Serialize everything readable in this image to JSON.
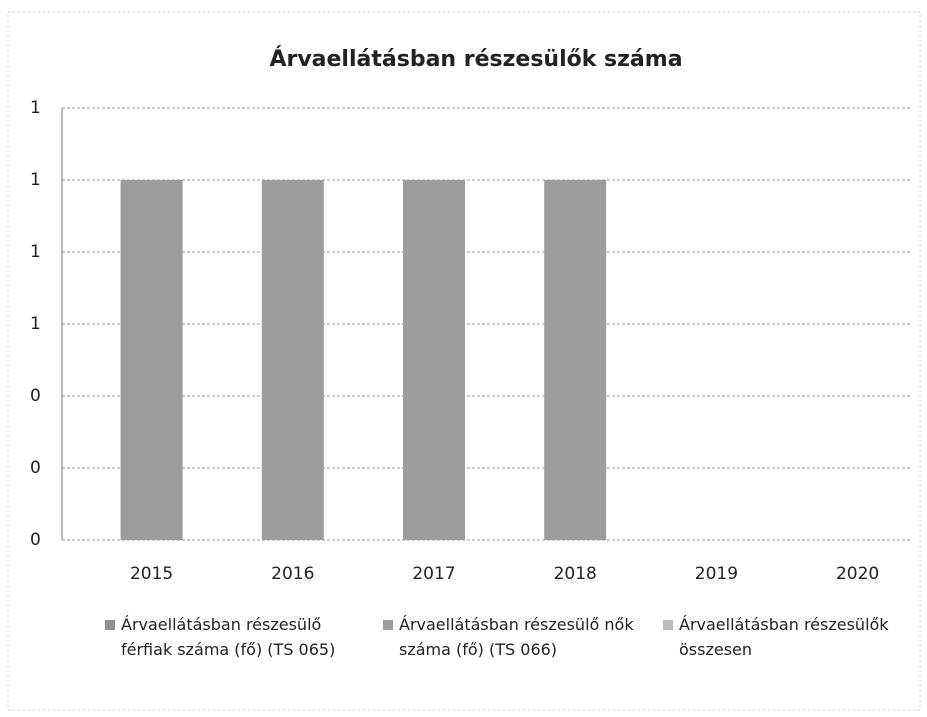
{
  "chart_data": {
    "type": "bar",
    "title": "Árvaellátásban részesülők száma",
    "categories": [
      "2015",
      "2016",
      "2017",
      "2018",
      "2019",
      "2020"
    ],
    "series": [
      {
        "name": "Árvaellátásban részesülő férfiak száma (fő) (TS 065)",
        "color": "#8f8f8f",
        "values": [
          null,
          null,
          null,
          null,
          null,
          null
        ]
      },
      {
        "name": "Árvaellátásban részesülő nők száma (fő) (TS 066)",
        "color": "#9c9c9c",
        "values": [
          1,
          1,
          1,
          1,
          null,
          null
        ]
      },
      {
        "name": "Árvaellátásban részesülők összesen",
        "color": "#bdbdbd",
        "values": [
          null,
          null,
          null,
          null,
          null,
          null
        ]
      }
    ],
    "ylim": [
      0,
      1.2
    ],
    "yticks": [
      0,
      {
        "value": 0.2,
        "label": "0"
      },
      {
        "value": 0.4,
        "label": "0"
      },
      {
        "value": 0.6,
        "label": "1"
      },
      {
        "value": 0.8,
        "label": "1"
      },
      {
        "value": 1,
        "label": "1"
      },
      {
        "value": 1.2,
        "label": "1"
      }
    ],
    "grid": true,
    "legend": "bottom"
  }
}
